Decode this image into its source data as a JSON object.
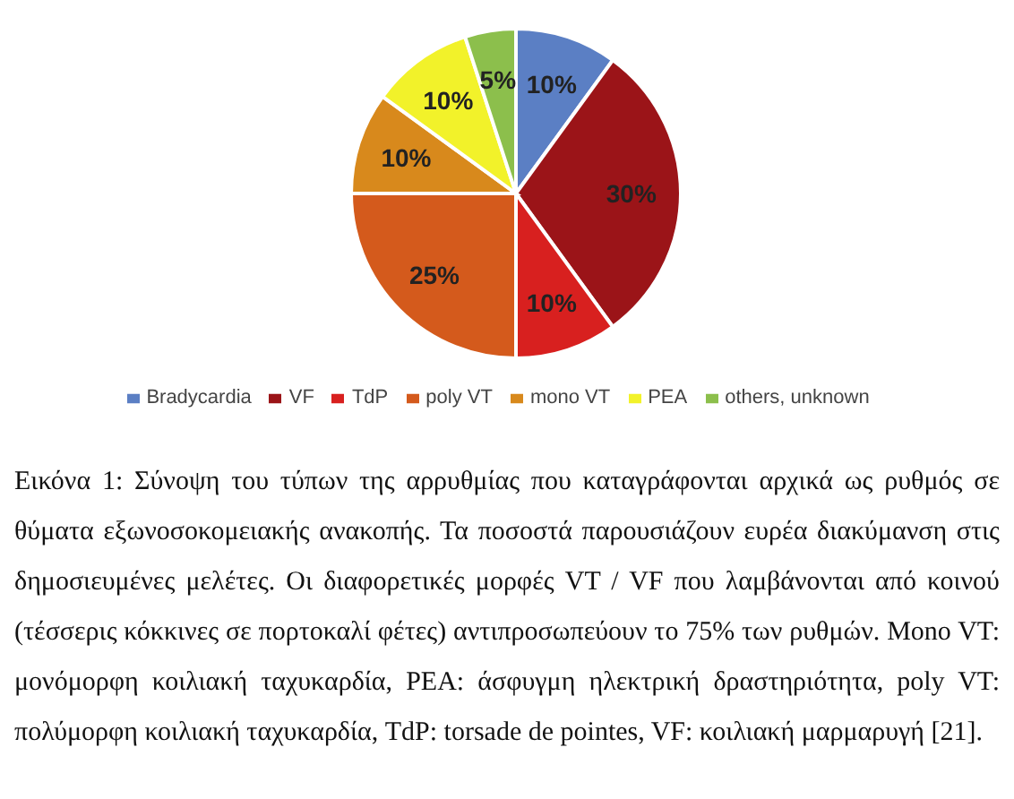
{
  "chart_data": {
    "type": "pie",
    "categories": [
      "Bradycardia",
      "VF",
      "TdP",
      "poly VT",
      "mono VT",
      "PEA",
      "others, unknown"
    ],
    "values": [
      10,
      30,
      10,
      25,
      10,
      10,
      5
    ],
    "value_labels": [
      "10%",
      "30%",
      "10%",
      "25%",
      "10%",
      "10%",
      "5%"
    ],
    "colors": [
      "#5b7fc4",
      "#9b1418",
      "#d8201f",
      "#d45a1c",
      "#d8891c",
      "#f2f22a",
      "#8cbf4c"
    ],
    "legend": "bottom",
    "annotations": [
      "Εικόνα 1: Σύνοψη του τύπων της αρρυθμίας που καταγράφονται αρχικά ως ρυθμός σε θύματα εξωνοσοκομειακής ανακοπής. Τα ποσοστά παρουσιάζουν ευρέα διακύμανση στις δημοσιευμένες μελέτες. Οι διαφορετικές μορφές VT / VF που λαμβάνονται από κοινού (τέσσερις κόκκινες σε πορτοκαλί φέτες) αντιπροσωπεύουν το 75% των ρυθμών. Mono VT: μονόμορφη κοιλιακή ταχυκαρδία, PEA: άσφυγμη ηλεκτρική δραστηριότητα, poly VT: πολύμορφη κοιλιακή ταχυκαρδία, TdP: torsade de pointes, VF: κοιλιακή μαρμαρυγή [21]."
    ]
  }
}
